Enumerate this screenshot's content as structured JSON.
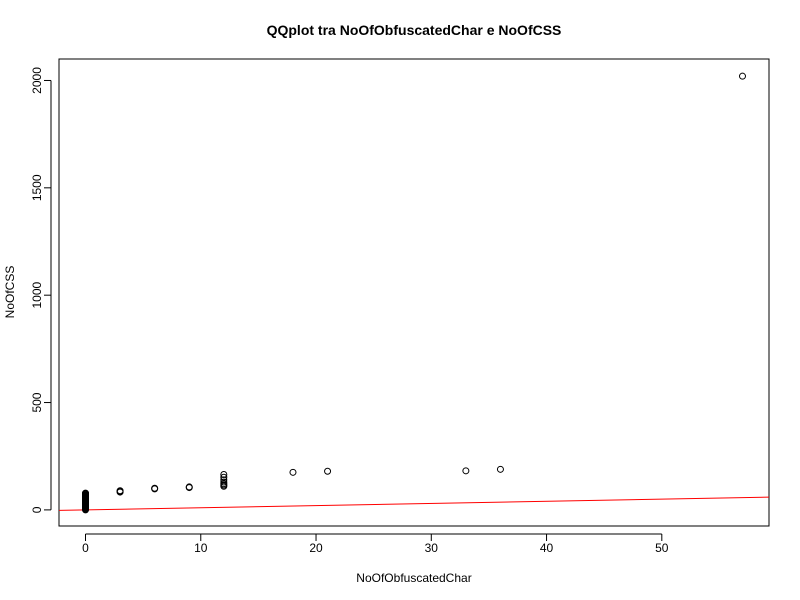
{
  "chart_data": {
    "type": "scatter",
    "title": "QQplot tra NoOfObfuscatedChar e NoOfCSS",
    "xlabel": "NoOfObfuscatedChar",
    "ylabel": "NoOfCSS",
    "xlim": [
      -2.3,
      59.3
    ],
    "ylim": [
      -75,
      2100
    ],
    "xticks": [
      0,
      10,
      20,
      30,
      40,
      50
    ],
    "yticks": [
      0,
      500,
      1000,
      1500,
      2000
    ],
    "grid": false,
    "legend": "none",
    "point_color": "#000000",
    "line_color": "#ff0000",
    "reference_line": {
      "intercept": 0,
      "slope": 1
    },
    "points": [
      {
        "x": 0,
        "y": 0
      },
      {
        "x": 0,
        "y": 3
      },
      {
        "x": 0,
        "y": 6
      },
      {
        "x": 0,
        "y": 9
      },
      {
        "x": 0,
        "y": 12
      },
      {
        "x": 0,
        "y": 15
      },
      {
        "x": 0,
        "y": 18
      },
      {
        "x": 0,
        "y": 21
      },
      {
        "x": 0,
        "y": 24
      },
      {
        "x": 0,
        "y": 27
      },
      {
        "x": 0,
        "y": 30
      },
      {
        "x": 0,
        "y": 33
      },
      {
        "x": 0,
        "y": 36
      },
      {
        "x": 0,
        "y": 39
      },
      {
        "x": 0,
        "y": 42
      },
      {
        "x": 0,
        "y": 45
      },
      {
        "x": 0,
        "y": 48
      },
      {
        "x": 0,
        "y": 51
      },
      {
        "x": 0,
        "y": 54
      },
      {
        "x": 0,
        "y": 57
      },
      {
        "x": 0,
        "y": 60
      },
      {
        "x": 0,
        "y": 63
      },
      {
        "x": 0,
        "y": 66
      },
      {
        "x": 0,
        "y": 69
      },
      {
        "x": 0,
        "y": 72
      },
      {
        "x": 0,
        "y": 75
      },
      {
        "x": 0,
        "y": 78
      },
      {
        "x": 3,
        "y": 83
      },
      {
        "x": 3,
        "y": 86
      },
      {
        "x": 3,
        "y": 89
      },
      {
        "x": 6,
        "y": 98
      },
      {
        "x": 6,
        "y": 101
      },
      {
        "x": 9,
        "y": 104
      },
      {
        "x": 9,
        "y": 107
      },
      {
        "x": 12,
        "y": 110
      },
      {
        "x": 12,
        "y": 116
      },
      {
        "x": 12,
        "y": 122
      },
      {
        "x": 12,
        "y": 130
      },
      {
        "x": 12,
        "y": 140
      },
      {
        "x": 12,
        "y": 152
      },
      {
        "x": 12,
        "y": 165
      },
      {
        "x": 18,
        "y": 175
      },
      {
        "x": 21,
        "y": 180
      },
      {
        "x": 33,
        "y": 182
      },
      {
        "x": 36,
        "y": 189
      },
      {
        "x": 57,
        "y": 2020
      }
    ]
  }
}
